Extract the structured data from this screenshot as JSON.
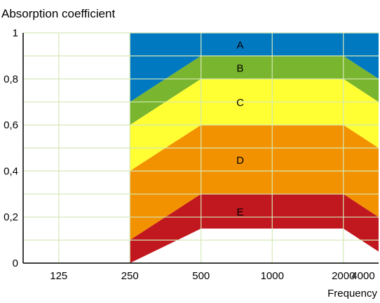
{
  "chart_data": {
    "type": "area",
    "title": "Absorption coefficient",
    "xlabel": "Frequency",
    "ylabel": "",
    "x_scale": "log",
    "categories": [
      "125",
      "250",
      "500",
      "1000",
      "2000",
      "4000"
    ],
    "ylim": [
      0,
      1
    ],
    "yticks": [
      "0",
      "0,2",
      "0,4",
      "0,6",
      "0,8",
      "1"
    ],
    "grid": true,
    "band_boundaries": [
      {
        "name": "E-lower",
        "x": [
          "250",
          "500",
          "1000",
          "2000",
          "4000"
        ],
        "values": [
          0,
          0.15,
          0.15,
          0.15,
          0.05
        ]
      },
      {
        "name": "E/D",
        "x": [
          "250",
          "500",
          "1000",
          "2000",
          "4000"
        ],
        "values": [
          0.1,
          0.3,
          0.3,
          0.3,
          0.2
        ]
      },
      {
        "name": "D/C",
        "x": [
          "250",
          "500",
          "1000",
          "2000",
          "4000"
        ],
        "values": [
          0.4,
          0.6,
          0.6,
          0.6,
          0.5
        ]
      },
      {
        "name": "C/B",
        "x": [
          "250",
          "500",
          "1000",
          "2000",
          "4000"
        ],
        "values": [
          0.6,
          0.8,
          0.8,
          0.8,
          0.7
        ]
      },
      {
        "name": "B/A",
        "x": [
          "250",
          "500",
          "1000",
          "2000",
          "4000"
        ],
        "values": [
          0.7,
          0.9,
          0.9,
          0.9,
          0.8
        ]
      },
      {
        "name": "A-upper",
        "x": [
          "250",
          "500",
          "1000",
          "2000",
          "4000"
        ],
        "values": [
          1,
          1,
          1,
          1,
          1
        ]
      }
    ],
    "bands": [
      {
        "label": "A",
        "color": "#0079C1"
      },
      {
        "label": "B",
        "color": "#7AB52F"
      },
      {
        "label": "C",
        "color": "#FFFF33"
      },
      {
        "label": "D",
        "color": "#F39200"
      },
      {
        "label": "E",
        "color": "#C1171F"
      }
    ],
    "grid_color": "#D5E8B8"
  }
}
